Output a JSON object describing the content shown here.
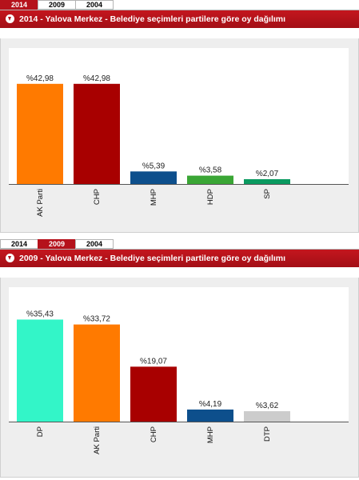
{
  "tabs": [
    "2014",
    "2009",
    "2004"
  ],
  "panels": [
    {
      "active_tab": 0,
      "title": "2014 - Yalova Merkez - Belediye seçimleri partilere göre oy dağılımı",
      "chart_data": {
        "type": "bar",
        "categories": [
          "AK Parti",
          "CHP",
          "MHP",
          "HDP",
          "SP"
        ],
        "values": [
          42.98,
          42.98,
          5.39,
          3.58,
          2.07
        ],
        "value_labels": [
          "%42,98",
          "%42,98",
          "%5,39",
          "%3,58",
          "%2,07"
        ],
        "colors": [
          "#ff7a00",
          "#a80000",
          "#0d4f8c",
          "#3aa635",
          "#0a9a60"
        ],
        "ylim": [
          0,
          46
        ],
        "title": "",
        "xlabel": "",
        "ylabel": "",
        "grid": false,
        "legend": "none"
      }
    },
    {
      "active_tab": 1,
      "title": "2009 - Yalova Merkez - Belediye seçimleri partilere göre oy dağılımı",
      "chart_data": {
        "type": "bar",
        "categories": [
          "DP",
          "AK Parti",
          "CHP",
          "MHP",
          "DTP"
        ],
        "values": [
          35.43,
          33.72,
          19.07,
          4.19,
          3.62
        ],
        "value_labels": [
          "%35,43",
          "%33,72",
          "%19,07",
          "%4,19",
          "%3,62"
        ],
        "colors": [
          "#33f5c8",
          "#ff7a00",
          "#a80000",
          "#0d4f8c",
          "#cccccc"
        ],
        "ylim": [
          0,
          37.5
        ],
        "title": "",
        "xlabel": "",
        "ylabel": "",
        "grid": false,
        "legend": "none"
      }
    }
  ]
}
